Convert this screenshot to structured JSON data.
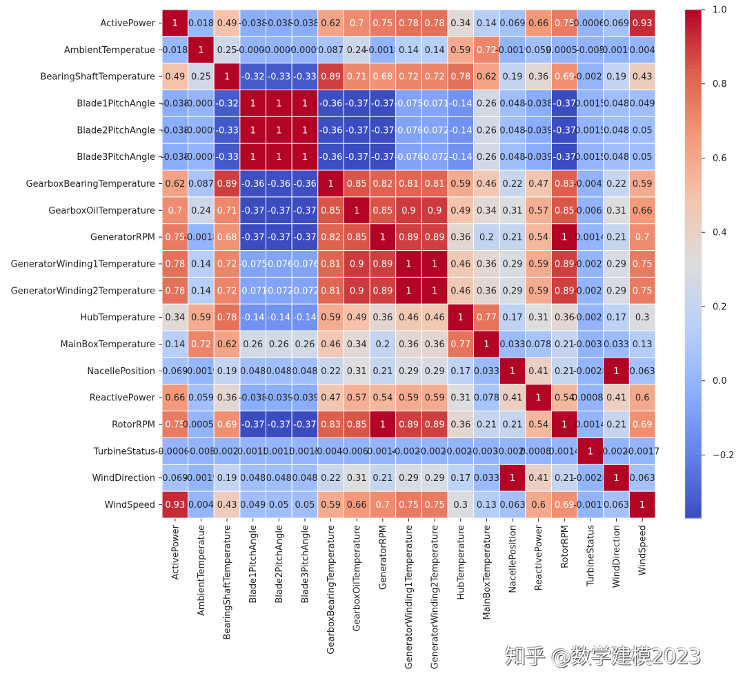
{
  "chart_data": {
    "type": "heatmap",
    "title": "",
    "colormap": "coolwarm",
    "vmin": -0.37,
    "vmax": 1.0,
    "colorbar_ticks": [
      1.0,
      0.8,
      0.6,
      0.4,
      0.2,
      0.0,
      -0.2
    ],
    "colorbar_tick_labels": [
      "1.0",
      "0.8",
      "0.6",
      "0.4",
      "0.2",
      "0.0",
      "−0.2"
    ],
    "labels": [
      "ActivePower",
      "AmbientTemperatue",
      "BearingShaftTemperature",
      "Blade1PitchAngle",
      "Blade2PitchAngle",
      "Blade3PitchAngle",
      "GearboxBearingTemperature",
      "GearboxOilTemperature",
      "GeneratorRPM",
      "GeneratorWinding1Temperature",
      "GeneratorWinding2Temperature",
      "HubTemperature",
      "MainBoxTemperature",
      "NacellePosition",
      "ReactivePower",
      "RotorRPM",
      "TurbineStatus",
      "WindDirection",
      "WindSpeed"
    ],
    "matrix": [
      [
        1,
        0.018,
        0.49,
        -0.038,
        -0.038,
        -0.038,
        0.62,
        0.7,
        0.75,
        0.78,
        0.78,
        0.34,
        0.14,
        0.069,
        0.66,
        0.75,
        -0.00063,
        0.069,
        0.93
      ],
      [
        0.018,
        1,
        0.25,
        -0.0002,
        -0.0009,
        -0.0009,
        0.087,
        0.24,
        -0.0018,
        0.14,
        0.14,
        0.59,
        0.72,
        -0.0019,
        0.059,
        0.00059,
        -0.005,
        -0.0019,
        0.004
      ],
      [
        0.49,
        0.25,
        1,
        -0.32,
        -0.33,
        -0.33,
        0.89,
        0.71,
        0.68,
        0.72,
        0.72,
        0.78,
        0.62,
        0.19,
        0.36,
        0.69,
        -0.0021,
        0.19,
        0.43
      ],
      [
        -0.038,
        -0.0002,
        -0.32,
        1,
        1,
        1,
        -0.36,
        -0.37,
        -0.37,
        -0.075,
        -0.071,
        -0.14,
        0.26,
        0.048,
        -0.038,
        -0.37,
        0.0015,
        0.048,
        0.049
      ],
      [
        -0.038,
        -0.0009,
        -0.33,
        1,
        1,
        1,
        -0.36,
        -0.37,
        -0.37,
        -0.076,
        -0.072,
        -0.14,
        0.26,
        0.048,
        -0.039,
        -0.37,
        0.0015,
        0.048,
        0.05
      ],
      [
        -0.038,
        -0.0009,
        -0.33,
        1,
        1,
        1,
        -0.36,
        -0.37,
        -0.37,
        -0.076,
        -0.072,
        -0.14,
        0.26,
        0.048,
        -0.039,
        -0.37,
        0.0015,
        0.048,
        0.05
      ],
      [
        0.62,
        0.087,
        0.89,
        -0.36,
        -0.36,
        -0.36,
        1,
        0.85,
        0.82,
        0.81,
        0.81,
        0.59,
        0.46,
        0.22,
        0.47,
        0.83,
        -0.0045,
        0.22,
        0.59
      ],
      [
        0.7,
        0.24,
        0.71,
        -0.37,
        -0.37,
        -0.37,
        0.85,
        1,
        0.85,
        0.9,
        0.9,
        0.49,
        0.34,
        0.31,
        0.57,
        0.85,
        -0.0063,
        0.31,
        0.66
      ],
      [
        0.75,
        -0.0018,
        0.68,
        -0.37,
        -0.37,
        -0.37,
        0.82,
        0.85,
        1,
        0.89,
        0.89,
        0.36,
        0.2,
        0.21,
        0.54,
        1,
        0.0014,
        0.21,
        0.7
      ],
      [
        0.78,
        0.14,
        0.72,
        -0.075,
        -0.076,
        -0.076,
        0.81,
        0.9,
        0.89,
        1,
        1,
        0.46,
        0.36,
        0.29,
        0.59,
        0.89,
        -0.0021,
        0.29,
        0.75
      ],
      [
        0.78,
        0.14,
        0.72,
        -0.071,
        -0.072,
        -0.072,
        0.81,
        0.9,
        0.89,
        1,
        1,
        0.46,
        0.36,
        0.29,
        0.59,
        0.89,
        -0.0021,
        0.29,
        0.75
      ],
      [
        0.34,
        0.59,
        0.78,
        -0.14,
        -0.14,
        -0.14,
        0.59,
        0.49,
        0.36,
        0.46,
        0.46,
        1,
        0.77,
        0.17,
        0.31,
        0.36,
        -0.0027,
        0.17,
        0.3
      ],
      [
        0.14,
        0.72,
        0.62,
        0.26,
        0.26,
        0.26,
        0.46,
        0.34,
        0.2,
        0.36,
        0.36,
        0.77,
        1,
        0.033,
        0.078,
        0.21,
        -0.0037,
        0.033,
        0.13
      ],
      [
        0.069,
        -0.0019,
        0.19,
        0.048,
        0.048,
        0.048,
        0.22,
        0.31,
        0.21,
        0.29,
        0.29,
        0.17,
        0.033,
        1,
        0.41,
        0.21,
        -0.0028,
        1,
        0.063
      ],
      [
        0.66,
        0.059,
        0.36,
        -0.038,
        -0.039,
        -0.039,
        0.47,
        0.57,
        0.54,
        0.59,
        0.59,
        0.31,
        0.078,
        0.41,
        1,
        0.54,
        0.00082,
        0.41,
        0.6
      ],
      [
        0.75,
        0.00059,
        0.69,
        -0.37,
        -0.37,
        -0.37,
        0.83,
        0.85,
        1,
        0.89,
        0.89,
        0.36,
        0.21,
        0.21,
        0.54,
        1,
        0.0014,
        0.21,
        0.69
      ],
      [
        -0.00063,
        -0.005,
        -0.0021,
        0.0015,
        0.0015,
        0.0015,
        -0.0045,
        -0.0063,
        0.0014,
        -0.0021,
        -0.0021,
        -0.0027,
        -0.0037,
        -0.0028,
        0.00082,
        0.0014,
        1,
        -0.0028,
        -0.0017
      ],
      [
        0.069,
        -0.0019,
        0.19,
        0.048,
        0.048,
        0.048,
        0.22,
        0.31,
        0.21,
        0.29,
        0.29,
        0.17,
        0.033,
        1,
        0.41,
        0.21,
        -0.0028,
        1,
        0.063
      ],
      [
        0.93,
        0.004,
        0.43,
        0.049,
        0.05,
        0.05,
        0.59,
        0.66,
        0.7,
        0.75,
        0.75,
        0.3,
        0.13,
        0.063,
        0.6,
        0.69,
        -0.0017,
        0.063,
        1
      ]
    ]
  },
  "watermark": "知乎 @数学建模2023"
}
